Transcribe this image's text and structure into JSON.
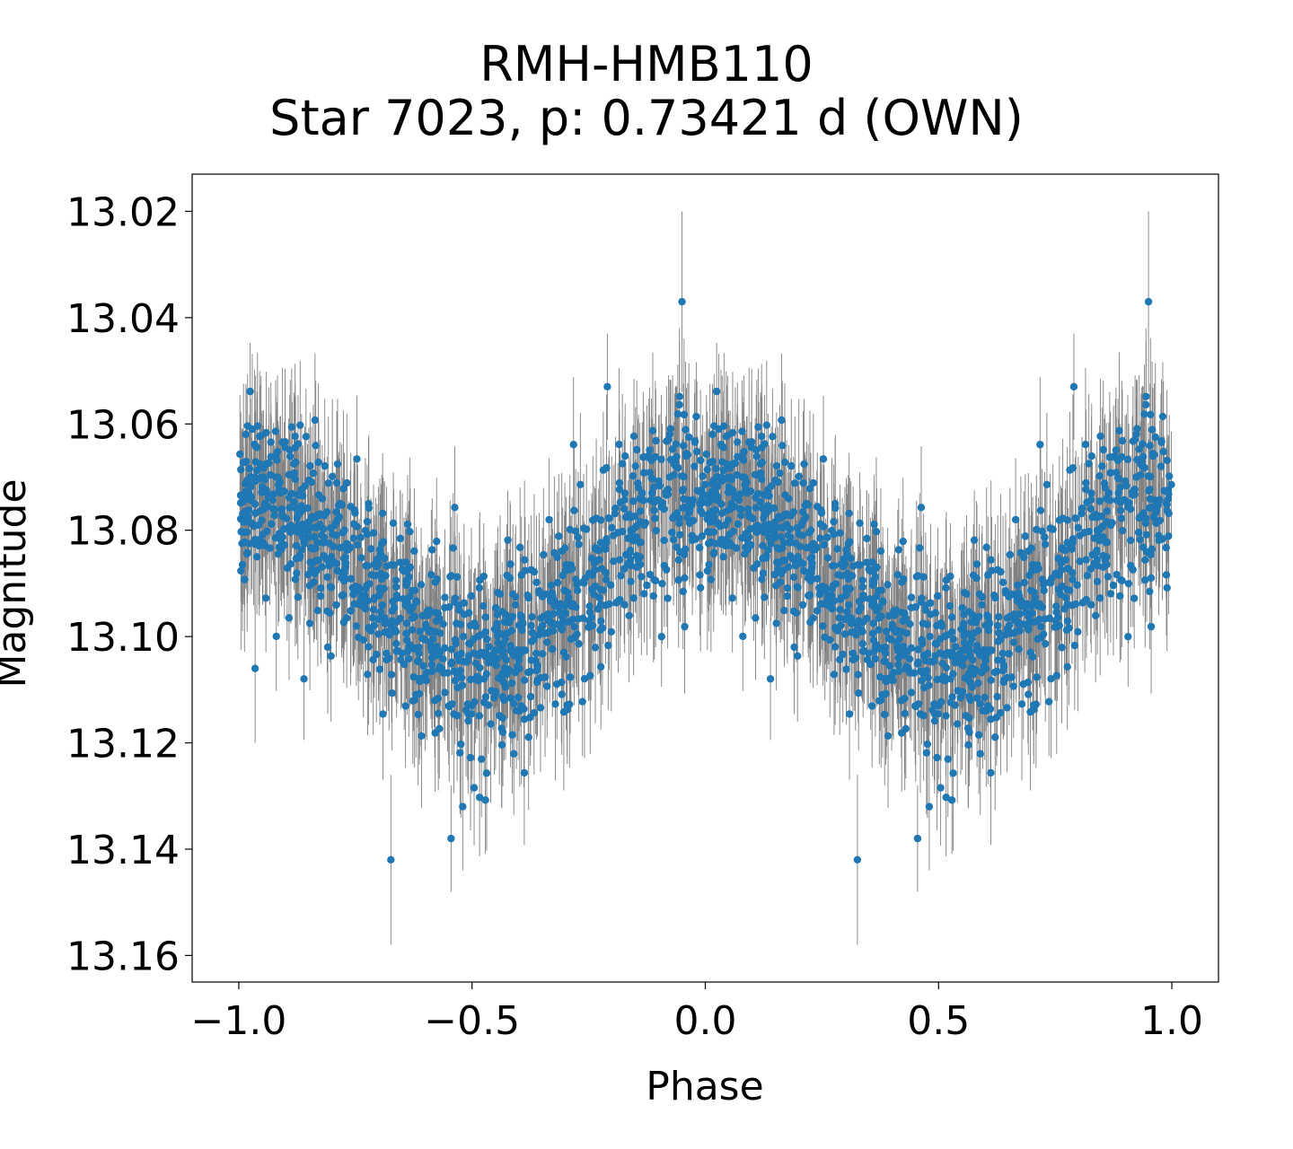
{
  "chart_data": {
    "type": "scatter",
    "title": "RMH-HMB110",
    "subtitle": "Star 7023, p: 0.73421 d (OWN)",
    "xlabel": "Phase",
    "ylabel": "Magnitude",
    "xlim": [
      -1.1,
      1.1
    ],
    "ylim": [
      13.165,
      13.013
    ],
    "y_inverted": true,
    "x_ticks": [
      -1.0,
      -0.5,
      0.0,
      0.5,
      1.0
    ],
    "x_tick_labels": [
      "−1.0",
      "−0.5",
      "0.0",
      "0.5",
      "1.0"
    ],
    "y_ticks": [
      13.02,
      13.04,
      13.06,
      13.08,
      13.1,
      13.12,
      13.14,
      13.16
    ],
    "y_tick_labels": [
      "13.02",
      "13.04",
      "13.06",
      "13.08",
      "13.10",
      "13.12",
      "13.14",
      "13.16"
    ],
    "grid": false,
    "legend": false,
    "marker_color": "#1f77b4",
    "errorbar_color": "#808080",
    "folded_twice": true,
    "mean_magnitude": 13.087,
    "amplitude": 0.016,
    "light_curve_profile": [
      {
        "phase": 0.0,
        "mag": 13.073
      },
      {
        "phase": 0.1,
        "mag": 13.075
      },
      {
        "phase": 0.2,
        "mag": 13.082
      },
      {
        "phase": 0.3,
        "mag": 13.092
      },
      {
        "phase": 0.4,
        "mag": 13.102
      },
      {
        "phase": 0.5,
        "mag": 13.106
      },
      {
        "phase": 0.6,
        "mag": 13.104
      },
      {
        "phase": 0.7,
        "mag": 13.096
      },
      {
        "phase": 0.8,
        "mag": 13.085
      },
      {
        "phase": 0.9,
        "mag": 13.076
      },
      {
        "phase": 1.0,
        "mag": 13.073
      }
    ],
    "notable_points": [
      {
        "x": -0.05,
        "y": 13.037,
        "err": 0.017
      },
      {
        "x": 0.95,
        "y": 13.037,
        "err": 0.017
      },
      {
        "x": -0.674,
        "y": 13.142,
        "err": 0.016
      },
      {
        "x": 0.326,
        "y": 13.142,
        "err": 0.016
      },
      {
        "x": -0.545,
        "y": 13.138,
        "err": 0.01
      },
      {
        "x": 0.455,
        "y": 13.138,
        "err": 0.01
      },
      {
        "x": -0.21,
        "y": 13.053,
        "err": 0.01
      },
      {
        "x": 0.79,
        "y": 13.053,
        "err": 0.01
      },
      {
        "x": -0.965,
        "y": 13.106,
        "err": 0.014
      },
      {
        "x": -0.52,
        "y": 13.132,
        "err": 0.012
      },
      {
        "x": 0.48,
        "y": 13.132,
        "err": 0.012
      }
    ],
    "n_points_per_cycle": 1100,
    "typical_error": 0.012
  }
}
